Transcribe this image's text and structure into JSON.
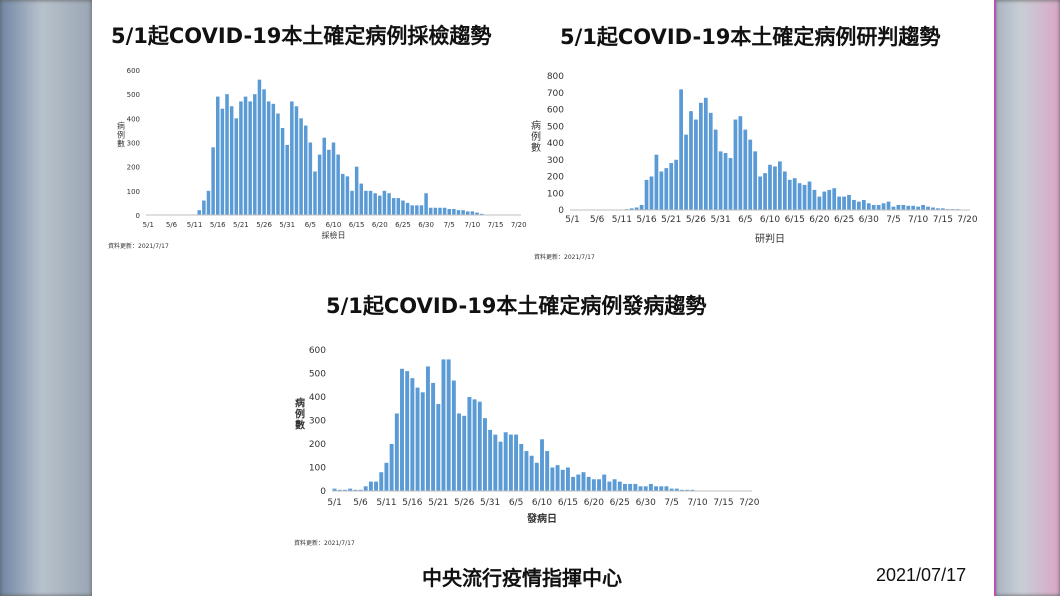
{
  "footer": {
    "organization": "中央流行疫情指揮中心",
    "date": "2021/07/17"
  },
  "colors": {
    "bar": "#5b9bd5",
    "axis": "#bfbfbf"
  },
  "chart_data": [
    {
      "type": "bar",
      "title": "5/1起COVID-19本土確定病例採檢趨勢",
      "xlabel": "採檢日",
      "ylabel": "病例數",
      "ylim": [
        0,
        600
      ],
      "yticks": [
        0,
        100,
        200,
        300,
        400,
        500,
        600
      ],
      "xtick_labels": [
        "5/1",
        "5/6",
        "5/11",
        "5/16",
        "5/21",
        "5/26",
        "5/31",
        "6/5",
        "6/10",
        "6/15",
        "6/20",
        "6/25",
        "6/30",
        "7/5",
        "7/10",
        "7/15",
        "7/20"
      ],
      "note": "資料更新：2021/7/17",
      "start_date": "5/1",
      "values": [
        0,
        0,
        0,
        0,
        0,
        0,
        0,
        0,
        0,
        0,
        0,
        20,
        60,
        100,
        280,
        490,
        440,
        500,
        450,
        400,
        470,
        490,
        470,
        500,
        560,
        520,
        470,
        460,
        420,
        360,
        290,
        470,
        450,
        400,
        370,
        300,
        180,
        250,
        320,
        270,
        300,
        250,
        170,
        160,
        100,
        200,
        130,
        100,
        100,
        90,
        80,
        100,
        90,
        70,
        70,
        60,
        50,
        40,
        40,
        40,
        90,
        30,
        30,
        30,
        30,
        25,
        25,
        20,
        20,
        15,
        15,
        10,
        5,
        0,
        0,
        0,
        0,
        0,
        0,
        0,
        0
      ]
    },
    {
      "type": "bar",
      "title": "5/1起COVID-19本土確定病例研判趨勢",
      "xlabel": "研判日",
      "ylabel": "病例數",
      "ylim": [
        0,
        800
      ],
      "yticks": [
        0,
        100,
        200,
        300,
        400,
        500,
        600,
        700,
        800
      ],
      "xtick_labels": [
        "5/1",
        "5/6",
        "5/11",
        "5/16",
        "5/21",
        "5/26",
        "5/31",
        "6/5",
        "6/10",
        "6/15",
        "6/20",
        "6/25",
        "6/30",
        "7/5",
        "7/10",
        "7/15",
        "7/20"
      ],
      "note": "資料更新：2021/7/17",
      "start_date": "5/1",
      "values": [
        0,
        0,
        2,
        1,
        0,
        0,
        0,
        0,
        0,
        0,
        0,
        5,
        10,
        15,
        30,
        180,
        200,
        330,
        230,
        250,
        280,
        300,
        720,
        450,
        590,
        540,
        640,
        670,
        580,
        480,
        350,
        340,
        310,
        540,
        560,
        480,
        420,
        350,
        200,
        220,
        270,
        260,
        290,
        230,
        180,
        190,
        160,
        150,
        170,
        120,
        80,
        110,
        120,
        130,
        80,
        80,
        90,
        60,
        50,
        60,
        40,
        30,
        30,
        40,
        50,
        20,
        30,
        30,
        25,
        25,
        20,
        30,
        20,
        15,
        10,
        10,
        5,
        5,
        5,
        0,
        0
      ]
    },
    {
      "type": "bar",
      "title": "5/1起COVID-19本土確定病例發病趨勢",
      "xlabel": "發病日",
      "ylabel": "病例數",
      "ylim": [
        0,
        600
      ],
      "yticks": [
        0,
        100,
        200,
        300,
        400,
        500,
        600
      ],
      "xtick_labels": [
        "5/1",
        "5/6",
        "5/11",
        "5/16",
        "5/21",
        "5/26",
        "5/31",
        "6/5",
        "6/10",
        "6/15",
        "6/20",
        "6/25",
        "6/30",
        "7/5",
        "7/10",
        "7/15",
        "7/20"
      ],
      "note": "資料更新：2021/7/17",
      "start_date": "5/1",
      "values": [
        10,
        5,
        5,
        10,
        5,
        5,
        20,
        40,
        40,
        80,
        120,
        200,
        330,
        520,
        510,
        480,
        440,
        420,
        530,
        460,
        370,
        560,
        560,
        470,
        330,
        320,
        400,
        390,
        380,
        310,
        260,
        240,
        210,
        250,
        240,
        240,
        200,
        170,
        150,
        120,
        220,
        170,
        100,
        110,
        90,
        100,
        60,
        70,
        80,
        60,
        50,
        50,
        70,
        40,
        50,
        40,
        30,
        30,
        30,
        20,
        20,
        30,
        20,
        20,
        20,
        10,
        10,
        5,
        5,
        5,
        0,
        0,
        0,
        0,
        0,
        0,
        0,
        0,
        0,
        0,
        0
      ]
    }
  ]
}
